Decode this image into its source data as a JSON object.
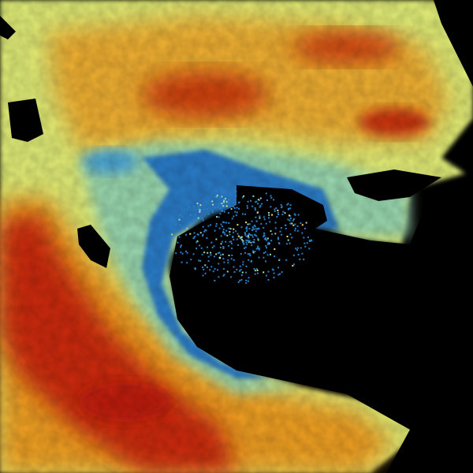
{
  "image": {
    "kind": "weather-radar-ppi",
    "background_color": "#000000",
    "palette": {
      "strong": "#c8200a",
      "high": "#e8701a",
      "moderate": "#f0b030",
      "light": "#e8f070",
      "faint": "#a8e8a0",
      "low": "#5ab4d8",
      "lowest": "#1a6cc0",
      "no_echo": "#000000"
    }
  }
}
